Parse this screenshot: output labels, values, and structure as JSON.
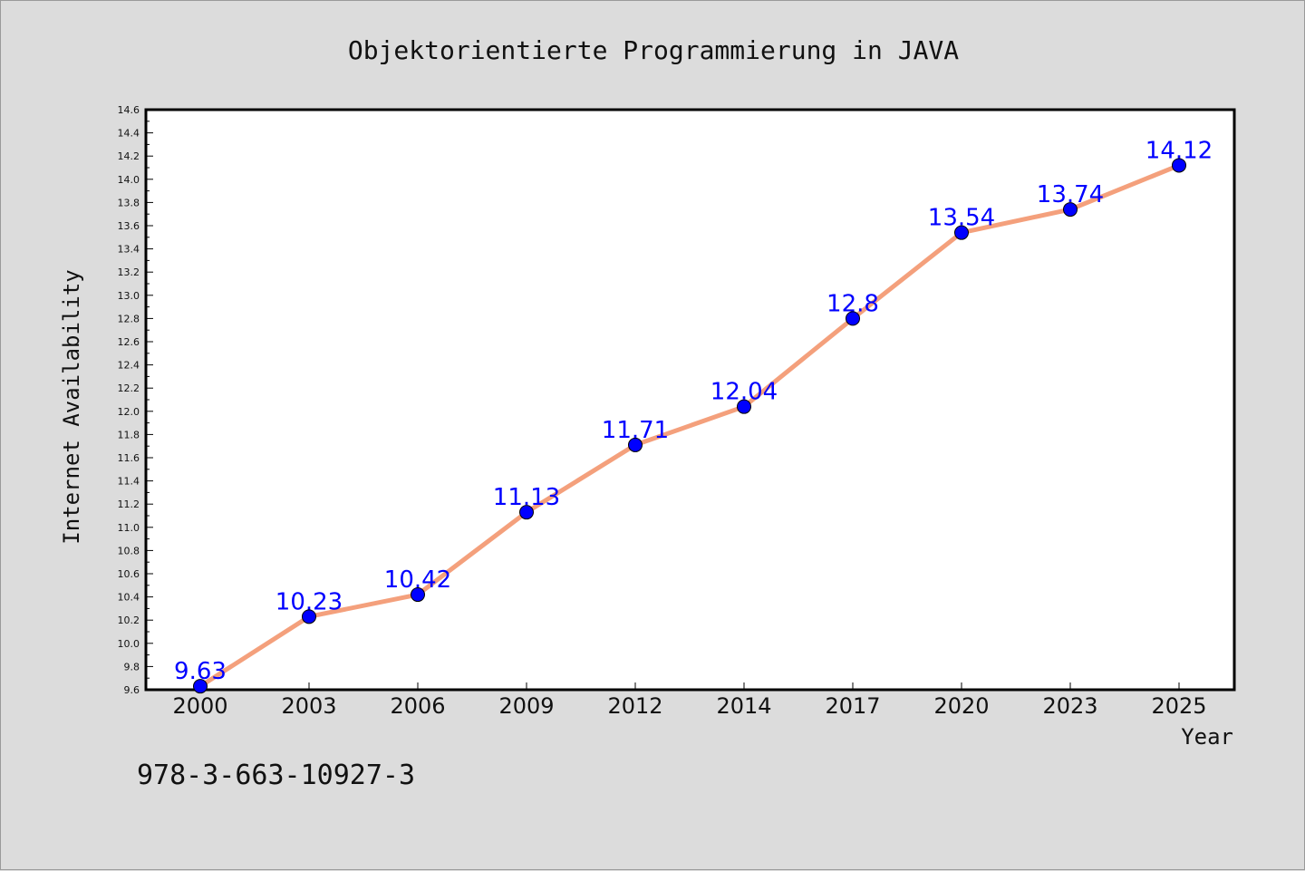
{
  "chart_data": {
    "type": "line",
    "title": "Objektorientierte Programmierung in JAVA",
    "xlabel": "Year",
    "ylabel": "Internet Availability",
    "categories": [
      "2000",
      "2003",
      "2006",
      "2009",
      "2012",
      "2014",
      "2017",
      "2020",
      "2023",
      "2025"
    ],
    "values": [
      9.63,
      10.23,
      10.42,
      11.13,
      11.71,
      12.04,
      12.8,
      13.54,
      13.74,
      14.12
    ],
    "data_labels": [
      "9.63",
      "10.23",
      "10.42",
      "11.13",
      "11.71",
      "12.04",
      "12.8",
      "13.54",
      "13.74",
      "14.12"
    ],
    "ylim": [
      9.6,
      14.6
    ],
    "yticks": [
      "9.6",
      "9.8",
      "10.0",
      "10.2",
      "10.4",
      "10.6",
      "10.8",
      "11.0",
      "11.2",
      "11.4",
      "11.6",
      "11.8",
      "12.0",
      "12.2",
      "12.4",
      "12.6",
      "12.8",
      "13.0",
      "13.2",
      "13.4",
      "13.6",
      "13.8",
      "14.0",
      "14.2",
      "14.4",
      "14.6"
    ],
    "grid": false,
    "line_color": "#f4a07c",
    "marker_color": "#0000ff",
    "label_color": "#0000ff"
  },
  "footer_text": "978-3-663-10927-3"
}
